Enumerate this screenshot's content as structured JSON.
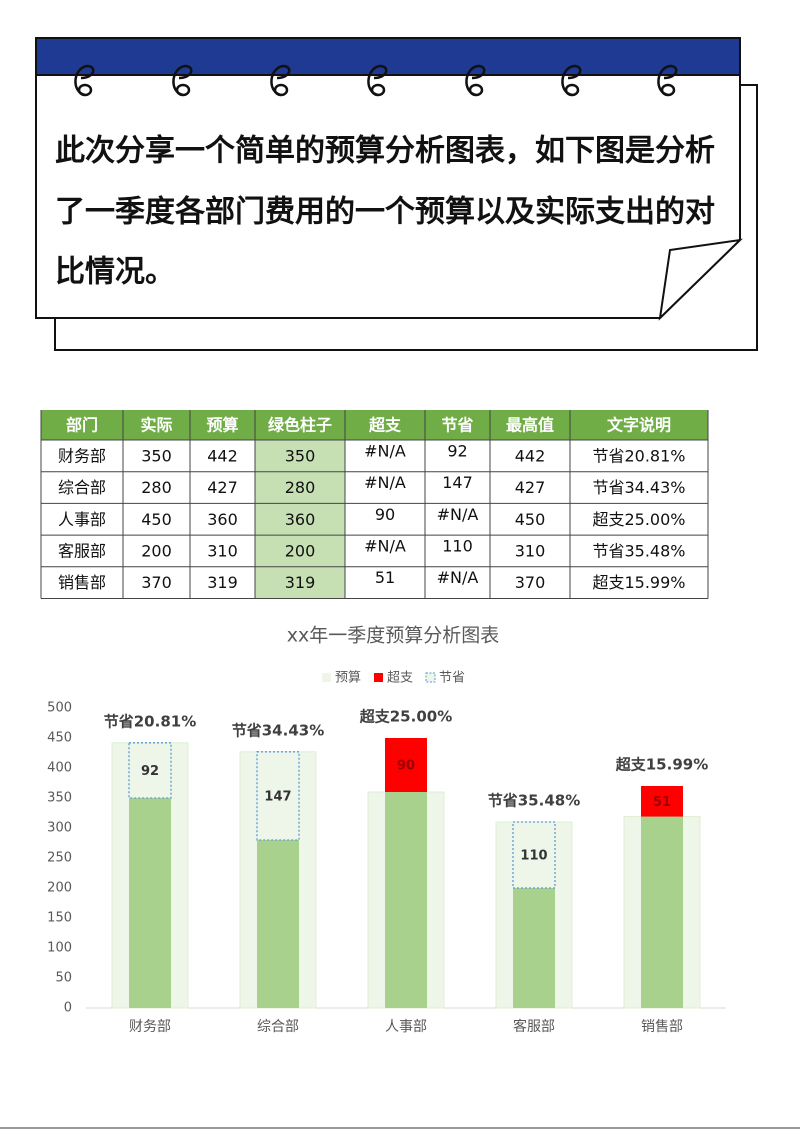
{
  "header": {
    "lines": [
      "此次分享一个简单的预算分析图表，如下图是分析",
      "了一季度各部门费用的一个预算以及实际支出的对",
      "比情况。"
    ]
  },
  "table": {
    "columns": [
      "部门",
      "实际",
      "预算",
      "绿色柱子",
      "超支",
      "节省",
      "最高值",
      "文字说明"
    ],
    "rows": [
      [
        "财务部",
        "350",
        "442",
        "350",
        "#N/A",
        "92",
        "442",
        "节省20.81%"
      ],
      [
        "综合部",
        "280",
        "427",
        "280",
        "#N/A",
        "147",
        "427",
        "节省34.43%"
      ],
      [
        "人事部",
        "450",
        "360",
        "360",
        "90",
        "#N/A",
        "450",
        "超支25.00%"
      ],
      [
        "客服部",
        "200",
        "310",
        "200",
        "#N/A",
        "110",
        "310",
        "节省35.48%"
      ],
      [
        "销售部",
        "370",
        "319",
        "319",
        "51",
        "#N/A",
        "370",
        "超支15.99%"
      ]
    ]
  },
  "chart_data": {
    "type": "bar",
    "title": "xx年一季度预算分析图表",
    "categories": [
      "财务部",
      "综合部",
      "人事部",
      "客服部",
      "销售部"
    ],
    "values": [
      350,
      280,
      360,
      200,
      319
    ],
    "color": "#a9d18e",
    "series": [
      {
        "name": "预算",
        "color": "#eef6ea",
        "values": [
          442,
          427,
          360,
          310,
          319
        ]
      },
      {
        "name": "超支",
        "color": "#ff0000",
        "values": [
          null,
          null,
          90,
          null,
          51
        ]
      },
      {
        "name": "节省",
        "color": "#5b9bd5",
        "values": [
          92,
          147,
          null,
          110,
          null
        ]
      }
    ],
    "annotations": [
      "节省20.81%",
      "节省34.43%",
      "超支25.00%",
      "节省35.48%",
      "超支15.99%"
    ],
    "ylim": [
      0,
      500
    ],
    "yticks": [
      0,
      50,
      100,
      150,
      200,
      250,
      300,
      350,
      400,
      450,
      500
    ]
  }
}
